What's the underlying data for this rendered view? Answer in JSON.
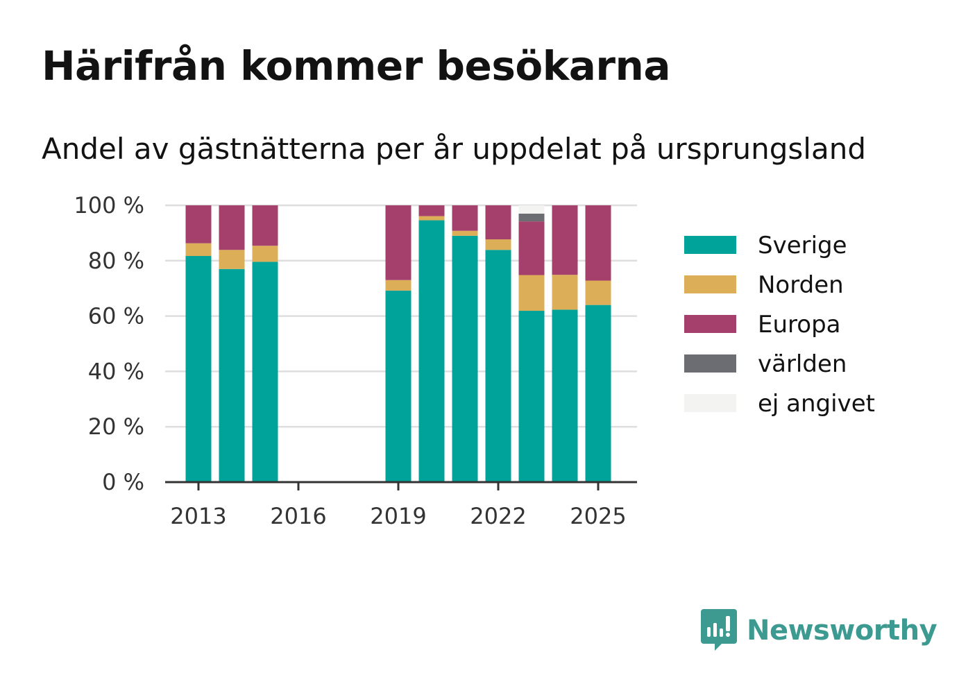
{
  "title": "Härifrån kommer besökarna",
  "subtitle": "Andel av gästnätterna per år uppdelat på ursprungsland",
  "brand": "Newsworthy",
  "chart_data": {
    "type": "bar",
    "stacked": true,
    "x": [
      2013,
      2014,
      2015,
      2019,
      2020,
      2021,
      2022,
      2023,
      2024,
      2025
    ],
    "x_ticks": [
      "2013",
      "2016",
      "2019",
      "2022",
      "2025"
    ],
    "y_ticks": [
      "0 %",
      "20 %",
      "40 %",
      "60 %",
      "80 %",
      "100 %"
    ],
    "ylim": [
      0,
      100
    ],
    "grid": "horizontal",
    "legend_position": "right",
    "series": [
      {
        "name": "Sverige",
        "color": "#00a39a",
        "values": [
          81.7,
          77.0,
          79.6,
          69.2,
          94.6,
          89.0,
          83.9,
          61.9,
          62.3,
          64.0
        ]
      },
      {
        "name": "Norden",
        "color": "#ddae58",
        "values": [
          4.6,
          6.9,
          5.8,
          3.8,
          1.5,
          1.8,
          3.8,
          12.9,
          12.6,
          8.8
        ]
      },
      {
        "name": "Europa",
        "color": "#a4406b",
        "values": [
          13.7,
          16.1,
          14.6,
          27.0,
          3.9,
          9.2,
          12.3,
          19.4,
          25.1,
          27.2
        ]
      },
      {
        "name": "världen",
        "color": "#6c6d73",
        "values": [
          0,
          0,
          0,
          0,
          0,
          0,
          0,
          2.8,
          0,
          0
        ]
      },
      {
        "name": "ej angivet",
        "color": "#f3f3f1",
        "values": [
          0,
          0,
          0,
          0,
          0,
          0,
          0,
          3.0,
          0,
          0
        ]
      }
    ]
  }
}
